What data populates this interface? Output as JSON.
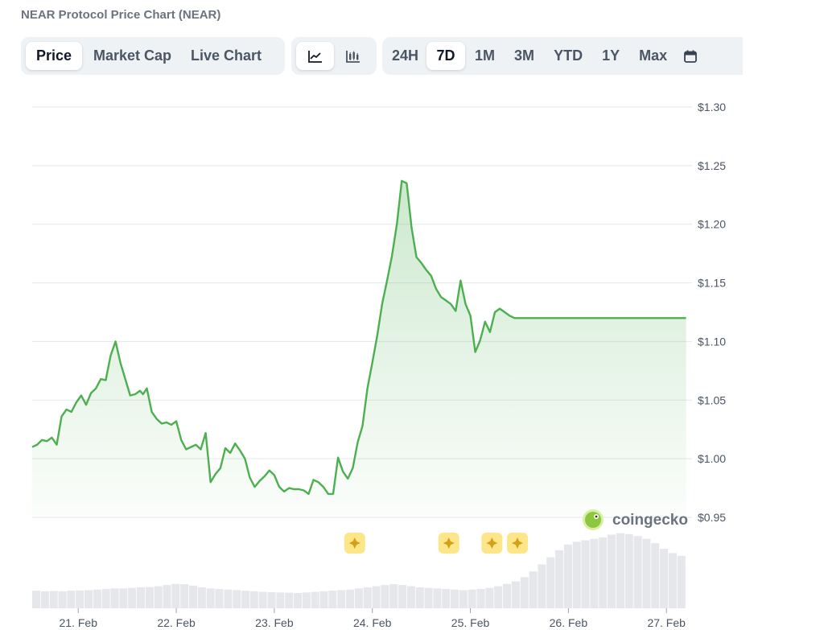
{
  "title": "NEAR Protocol Price Chart (NEAR)",
  "toolbar": {
    "type_tabs": [
      "Price",
      "Market Cap",
      "Live Chart"
    ],
    "active_type": "Price",
    "view_icons": [
      "line-chart-icon",
      "candlestick-chart-icon"
    ],
    "active_view": "line-chart-icon",
    "range_tabs": [
      "24H",
      "7D",
      "1M",
      "3M",
      "YTD",
      "1Y",
      "Max"
    ],
    "active_range": "7D",
    "calendar_icon": "calendar-icon"
  },
  "watermark": "coingecko",
  "colors": {
    "line": "#4caf50",
    "area_top": "#c8e6c9",
    "volume": "#e5e7eb",
    "grid": "#e5e7eb",
    "event_marker": "#fde68a"
  },
  "chart_data": {
    "type": "line",
    "y_ticks": [
      "$1.30",
      "$1.25",
      "$1.20",
      "$1.15",
      "$1.10",
      "$1.05",
      "$1.00",
      "$0.95"
    ],
    "y_tick_values": [
      1.3,
      1.25,
      1.2,
      1.15,
      1.1,
      1.05,
      1.0,
      0.95
    ],
    "x_ticks": [
      "21. Feb",
      "22. Feb",
      "23. Feb",
      "24. Feb",
      "25. Feb",
      "26. Feb",
      "27. Feb"
    ],
    "ylim": [
      0.95,
      1.3
    ],
    "xlim": [
      20.53,
      27.22
    ],
    "grid": true,
    "series": [
      {
        "x": [
          20.53,
          20.58,
          20.63,
          20.68,
          20.73,
          20.78,
          20.83,
          20.88,
          20.93,
          20.98,
          21.03,
          21.08,
          21.13,
          21.18,
          21.23,
          21.28,
          21.33,
          21.38,
          21.43,
          21.48,
          21.53,
          21.58,
          21.63,
          21.66,
          21.7,
          21.75,
          21.8,
          21.85,
          21.9,
          21.95,
          22.0,
          22.05,
          22.1,
          22.15,
          22.2,
          22.25,
          22.3,
          22.35,
          22.4,
          22.45,
          22.5,
          22.55,
          22.6,
          22.65,
          22.7,
          22.75,
          22.8,
          22.85,
          22.9,
          22.95,
          23.0,
          23.05,
          23.1,
          23.15,
          23.2,
          23.25,
          23.3,
          23.35,
          23.4,
          23.45,
          23.5,
          23.55,
          23.6,
          23.65,
          23.7,
          23.75,
          23.8,
          23.85,
          23.9,
          23.95,
          24.0,
          24.05,
          24.1,
          24.15,
          24.2,
          24.25,
          24.3,
          24.35,
          24.4,
          24.45,
          24.5,
          24.55,
          24.6,
          24.65,
          24.7,
          24.75,
          24.8,
          24.85,
          24.9,
          24.95,
          25.0,
          25.05,
          25.1,
          25.15,
          25.2,
          25.25,
          25.3,
          25.35,
          25.4,
          25.45,
          25.5,
          25.55,
          25.6,
          25.65,
          25.7,
          25.75,
          25.8,
          25.85,
          25.88,
          25.92,
          25.96,
          26.0,
          26.05,
          26.1,
          26.15,
          26.2,
          26.25,
          26.3,
          26.35,
          26.4,
          26.45,
          26.5,
          26.55,
          26.6,
          26.65,
          26.7,
          26.75,
          26.8,
          26.85,
          26.9,
          26.95,
          27.0,
          27.05,
          27.1,
          27.15,
          27.2
        ],
        "values": [
          1.01,
          1.012,
          1.016,
          1.015,
          1.018,
          1.012,
          1.036,
          1.042,
          1.04,
          1.048,
          1.054,
          1.046,
          1.056,
          1.06,
          1.068,
          1.067,
          1.088,
          1.1,
          1.082,
          1.068,
          1.054,
          1.055,
          1.058,
          1.055,
          1.06,
          1.04,
          1.034,
          1.03,
          1.031,
          1.029,
          1.032,
          1.016,
          1.008,
          1.01,
          1.012,
          1.008,
          1.022,
          0.98,
          0.987,
          0.992,
          1.009,
          1.005,
          1.013,
          1.007,
          1.0,
          0.984,
          0.976,
          0.981,
          0.985,
          0.99,
          0.986,
          0.976,
          0.972,
          0.975,
          0.974,
          0.974,
          0.973,
          0.97,
          0.982,
          0.98,
          0.976,
          0.97,
          0.97,
          1.001,
          0.989,
          0.983,
          0.992,
          1.014,
          1.028,
          1.06,
          1.082,
          1.105,
          1.132,
          1.152,
          1.173,
          1.2,
          1.237,
          1.235,
          1.197,
          1.172,
          1.167,
          1.161,
          1.156,
          1.145,
          1.138,
          1.135,
          1.132,
          1.126,
          1.152,
          1.132,
          1.122,
          1.091,
          1.101,
          1.117,
          1.108,
          1.125,
          1.128,
          1.125,
          1.122,
          1.12,
          1.12,
          1.12,
          1.12,
          1.12,
          1.12,
          1.12,
          1.12,
          1.12,
          1.12,
          1.12,
          1.12,
          1.12,
          1.12,
          1.12,
          1.12,
          1.12,
          1.12,
          1.12,
          1.12,
          1.12,
          1.12,
          1.12,
          1.12,
          1.12,
          1.12,
          1.12,
          1.12,
          1.12,
          1.12,
          1.12,
          1.12,
          1.12,
          1.12,
          1.12,
          1.12,
          1.12
        ]
      }
    ],
    "volume": {
      "x_start": 20.53,
      "x_end": 27.2,
      "relative_values": [
        0.62,
        0.6,
        0.61,
        0.6,
        0.62,
        0.63,
        0.64,
        0.66,
        0.68,
        0.7,
        0.7,
        0.72,
        0.74,
        0.75,
        0.78,
        0.82,
        0.86,
        0.85,
        0.8,
        0.74,
        0.7,
        0.68,
        0.66,
        0.64,
        0.62,
        0.6,
        0.58,
        0.57,
        0.56,
        0.55,
        0.54,
        0.56,
        0.58,
        0.6,
        0.62,
        0.64,
        0.66,
        0.7,
        0.74,
        0.78,
        0.82,
        0.85,
        0.82,
        0.78,
        0.74,
        0.72,
        0.7,
        0.68,
        0.66,
        0.64,
        0.66,
        0.68,
        0.72,
        0.78,
        0.86,
        0.95,
        1.1,
        1.3,
        1.55,
        1.8,
        2.05,
        2.25,
        2.35,
        2.4,
        2.45,
        2.5,
        2.6,
        2.65,
        2.62,
        2.55,
        2.45,
        2.3,
        2.1,
        1.95,
        1.85
      ]
    },
    "event_markers_x": [
      23.82,
      24.78,
      25.22,
      25.48
    ]
  }
}
